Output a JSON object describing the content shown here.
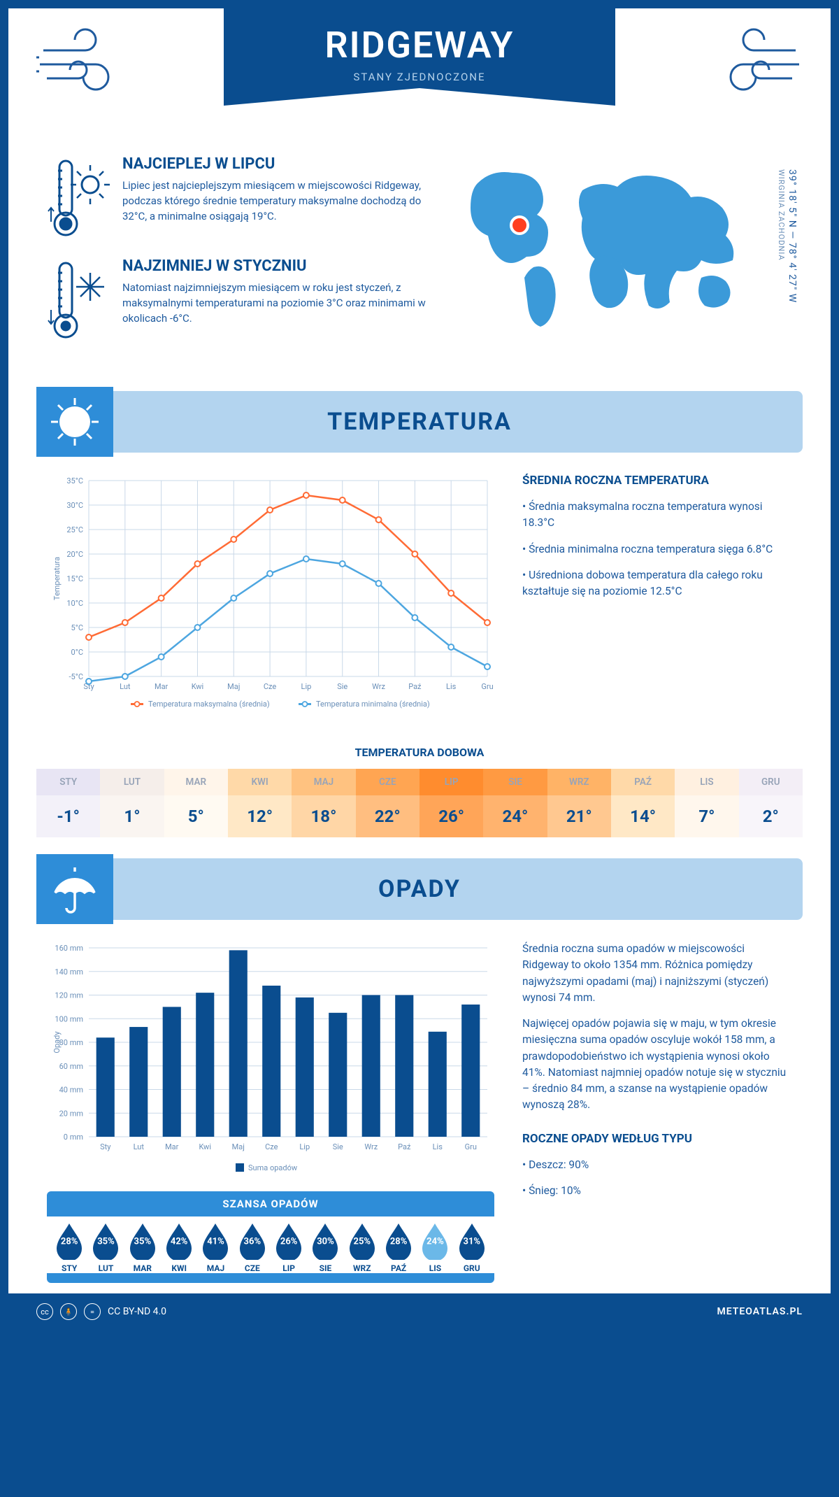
{
  "header": {
    "title": "RIDGEWAY",
    "subtitle": "STANY ZJEDNOCZONE"
  },
  "coords": {
    "lat": "39° 18′ 5″ N — 78° 4′ 27″ W",
    "region": "WIRGINIA ZACHODNIA"
  },
  "hottest": {
    "title": "NAJCIEPLEJ W LIPCU",
    "text": "Lipiec jest najcieplejszym miesiącem w miejscowości Ridgeway, podczas którego średnie temperatury maksymalne dochodzą do 32°C, a minimalne osiągają 19°C."
  },
  "coldest": {
    "title": "NAJZIMNIEJ W STYCZNIU",
    "text": "Natomiast najzimniejszym miesiącem w roku jest styczeń, z maksymalnymi temperaturami na poziomie 3°C oraz minimami w okolicach -6°C."
  },
  "temp_section": {
    "title": "TEMPERATURA",
    "chart": {
      "months": [
        "Sty",
        "Lut",
        "Mar",
        "Kwi",
        "Maj",
        "Cze",
        "Lip",
        "Sie",
        "Wrz",
        "Paź",
        "Lis",
        "Gru"
      ],
      "max": [
        3,
        6,
        11,
        18,
        23,
        29,
        32,
        31,
        27,
        20,
        12,
        6
      ],
      "min": [
        -6,
        -5,
        -1,
        5,
        11,
        16,
        19,
        18,
        14,
        7,
        1,
        -3
      ],
      "ylabel": "Temperatura",
      "ymin": -5,
      "ymax": 35,
      "ystep": 5,
      "max_color": "#ff6b35",
      "min_color": "#4da6e0",
      "grid_color": "#c9d8e8",
      "axis_color": "#0a4d8f",
      "legend_max": "Temperatura maksymalna (średnia)",
      "legend_min": "Temperatura minimalna (średnia)"
    },
    "side": {
      "title": "ŚREDNIA ROCZNA TEMPERATURA",
      "p1": "• Średnia maksymalna roczna temperatura wynosi 18.3°C",
      "p2": "• Średnia minimalna roczna temperatura sięga 6.8°C",
      "p3": "• Uśredniona dobowa temperatura dla całego roku kształtuje się na poziomie 12.5°C"
    },
    "dobowa_title": "TEMPERATURA DOBOWA",
    "dobowa": {
      "months": [
        "STY",
        "LUT",
        "MAR",
        "KWI",
        "MAJ",
        "CZE",
        "LIP",
        "SIE",
        "WRZ",
        "PAŹ",
        "LIS",
        "GRU"
      ],
      "values": [
        "-1°",
        "1°",
        "5°",
        "12°",
        "18°",
        "22°",
        "26°",
        "24°",
        "21°",
        "14°",
        "7°",
        "2°"
      ],
      "header_colors": [
        "#e8e5f4",
        "#f5eeea",
        "#fff5ea",
        "#ffd9a8",
        "#ffc280",
        "#ffa552",
        "#ff8c2e",
        "#ff9a42",
        "#ffb366",
        "#ffd9a8",
        "#fff0e0",
        "#f3eef6"
      ],
      "body_colors": [
        "#f3f1f9",
        "#faf5f1",
        "#fffaf2",
        "#ffe8c6",
        "#ffd6a6",
        "#ffbe80",
        "#ffa558",
        "#ffb36e",
        "#ffc890",
        "#ffe8c6",
        "#fff7ed",
        "#f8f5fa"
      ],
      "header_text": "#98a4b8",
      "body_text": "#0a4d8f"
    }
  },
  "opady_section": {
    "title": "OPADY",
    "chart": {
      "months": [
        "Sty",
        "Lut",
        "Mar",
        "Kwi",
        "Maj",
        "Cze",
        "Lip",
        "Sie",
        "Wrz",
        "Paź",
        "Lis",
        "Gru"
      ],
      "values": [
        84,
        93,
        110,
        122,
        158,
        128,
        118,
        105,
        120,
        120,
        89,
        112
      ],
      "ylabel": "Opady",
      "ymax": 160,
      "ystep": 20,
      "bar_color": "#0a4d8f",
      "grid_color": "#c9d8e8",
      "legend": "Suma opadów"
    },
    "side": {
      "p1": "Średnia roczna suma opadów w miejscowości Ridgeway to około 1354 mm. Różnica pomiędzy najwyższymi opadami (maj) i najniższymi (styczeń) wynosi 74 mm.",
      "p2": "Najwięcej opadów pojawia się w maju, w tym okresie miesięczna suma opadów oscyluje wokół 158 mm, a prawdopodobieństwo ich wystąpienia wynosi około 41%. Natomiast najmniej opadów notuje się w styczniu – średnio 84 mm, a szanse na wystąpienie opadów wynoszą 28%.",
      "type_title": "ROCZNE OPADY WEDŁUG TYPU",
      "type_p1": "• Deszcz: 90%",
      "type_p2": "• Śnieg: 10%"
    },
    "szansa": {
      "title": "SZANSA OPADÓW",
      "months": [
        "STY",
        "LUT",
        "MAR",
        "KWI",
        "MAJ",
        "CZE",
        "LIP",
        "SIE",
        "WRZ",
        "PAŹ",
        "LIS",
        "GRU"
      ],
      "pcts": [
        "28%",
        "35%",
        "35%",
        "42%",
        "41%",
        "36%",
        "26%",
        "30%",
        "25%",
        "28%",
        "24%",
        "31%"
      ],
      "min_idx": 10,
      "drop_color": "#0a4d8f",
      "drop_min_color": "#6bb8e8"
    }
  },
  "footer": {
    "license": "CC BY-ND 4.0",
    "site": "METEOATLAS.PL"
  }
}
